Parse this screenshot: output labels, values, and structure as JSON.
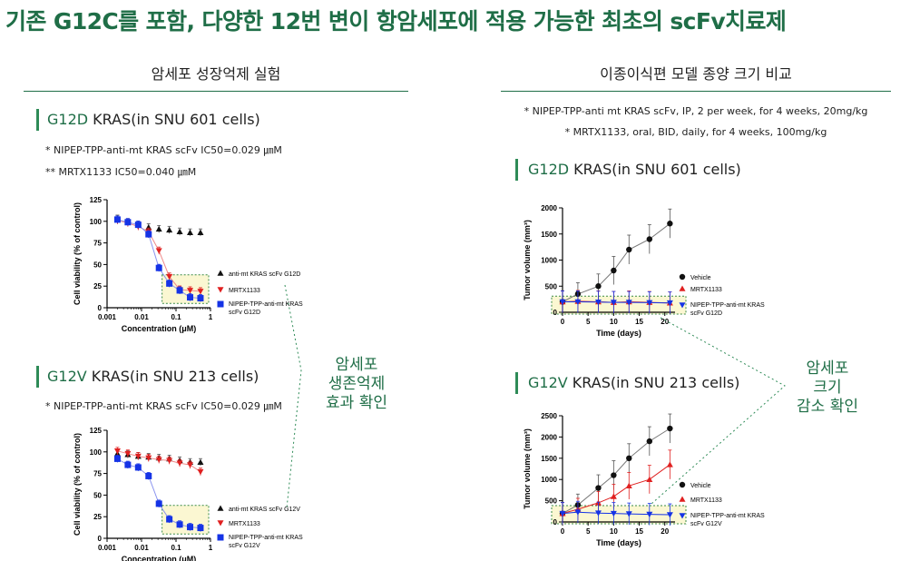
{
  "headline": "기존 G12C를 포함, 다양한 12번 변이 항암세포에 적용 가능한 최초의 scFv치료제",
  "left_section": {
    "title": "암세포 성장억제 실험",
    "panel1": {
      "mutation": "G12D",
      "rest": " KRAS(in SNU 601 cells)"
    },
    "panel1_notes": [
      "* NIPEP-TPP-anti-mt KRAS scFv IC50=0.029 ㎛M",
      "** MRTX1133 IC50=0.040 ㎛M"
    ],
    "panel2": {
      "mutation": "G12V",
      "rest": " KRAS(in SNU 213 cells)"
    },
    "panel2_notes": [
      "* NIPEP-TPP-anti-mt KRAS scFv IC50=0.029 ㎛M"
    ],
    "callout": [
      "암세포",
      "생존억제",
      "효과 확인"
    ]
  },
  "right_section": {
    "title": "이종이식편 모델 종양 크기 비교",
    "notes": [
      "* NIPEP-TPP-anti mt KRAS scFv, IP, 2 per week, for 4 weeks, 20mg/kg",
      "* MRTX1133, oral, BID, daily, for 4 weeks, 100mg/kg"
    ],
    "panel1": {
      "mutation": "G12D",
      "rest": " KRAS(in SNU 601 cells)"
    },
    "panel2": {
      "mutation": "G12V",
      "rest": " KRAS(in SNU 213 cells)"
    },
    "callout": [
      "암세포",
      "크기",
      "감소 확인"
    ]
  },
  "chart_data": [
    {
      "type": "scatter",
      "id": "viability_g12d",
      "xlabel": "Concentration (μM)",
      "ylabel": "Cell viability (% of control)",
      "xscale": "log",
      "xlim": [
        0.001,
        1
      ],
      "ylim": [
        0,
        125
      ],
      "xticks": [
        "0.001",
        "0.01",
        "0.1",
        "1"
      ],
      "xtick_labels": [
        "0.001",
        "0.01",
        "0.1",
        "1"
      ],
      "yticks": [
        0,
        25,
        50,
        75,
        100,
        125
      ],
      "legend_position": "right",
      "series": [
        {
          "name": "anti-mt KRAS scFv G12D",
          "color": "#111111",
          "marker": "triangle-up",
          "x": [
            0.002,
            0.004,
            0.008,
            0.016,
            0.032,
            0.064,
            0.128,
            0.256,
            0.512
          ],
          "y": [
            103,
            99,
            96,
            93,
            91,
            90,
            88,
            87,
            87
          ]
        },
        {
          "name": "MRTX1133",
          "color": "#e02020",
          "marker": "triangle-down",
          "x": [
            0.002,
            0.004,
            0.008,
            0.016,
            0.032,
            0.064,
            0.128,
            0.256,
            0.512
          ],
          "y": [
            101,
            98,
            94,
            88,
            66,
            36,
            21,
            20,
            19
          ]
        },
        {
          "name": "NIPEP-TPP-anti-mt KRAS scFv G12D",
          "color": "#1533e6",
          "marker": "square",
          "x": [
            0.002,
            0.004,
            0.008,
            0.016,
            0.032,
            0.064,
            0.128,
            0.256,
            0.512
          ],
          "y": [
            102,
            99,
            96,
            85,
            46,
            28,
            20,
            12,
            11
          ]
        }
      ]
    },
    {
      "type": "scatter",
      "id": "viability_g12v",
      "xlabel": "Concentration (μM)",
      "ylabel": "Cell viability (% of control)",
      "xscale": "log",
      "xlim": [
        0.001,
        1
      ],
      "ylim": [
        0,
        125
      ],
      "xticks": [
        "0.001",
        "0.01",
        "0.1",
        "1"
      ],
      "xtick_labels": [
        "0.001",
        "0.01",
        "0.1",
        "1"
      ],
      "yticks": [
        0,
        25,
        50,
        75,
        100,
        125
      ],
      "legend_position": "right",
      "series": [
        {
          "name": "anti-mt KRAS scFv G12V",
          "color": "#111111",
          "marker": "triangle-up",
          "x": [
            0.002,
            0.004,
            0.008,
            0.016,
            0.032,
            0.064,
            0.128,
            0.256,
            0.512
          ],
          "y": [
            98,
            97,
            95,
            94,
            93,
            92,
            90,
            88,
            88
          ]
        },
        {
          "name": "MRTX1133",
          "color": "#e02020",
          "marker": "triangle-down",
          "x": [
            0.002,
            0.004,
            0.008,
            0.016,
            0.032,
            0.064,
            0.128,
            0.256,
            0.512
          ],
          "y": [
            101,
            98,
            95,
            93,
            91,
            90,
            87,
            85,
            77
          ]
        },
        {
          "name": "NIPEP-TPP-anti-mt KRAS scFv G12V",
          "color": "#1533e6",
          "marker": "square",
          "x": [
            0.002,
            0.004,
            0.008,
            0.016,
            0.032,
            0.064,
            0.128,
            0.256,
            0.512
          ],
          "y": [
            92,
            85,
            82,
            72,
            40,
            22,
            16,
            13,
            12
          ]
        }
      ]
    },
    {
      "type": "line",
      "id": "tumor_g12d",
      "xlabel": "Time (days)",
      "ylabel": "Tumor volume (mm³)",
      "xlim": [
        0,
        22
      ],
      "ylim": [
        0,
        2000
      ],
      "xticks": [
        0,
        5,
        10,
        15,
        20
      ],
      "yticks": [
        0,
        500,
        1000,
        1500,
        2000
      ],
      "legend_position": "right",
      "series": [
        {
          "name": "Vehicle",
          "color": "#111111",
          "marker": "circle",
          "x": [
            0,
            3,
            7,
            10,
            13,
            17,
            21
          ],
          "y": [
            200,
            350,
            500,
            800,
            1200,
            1400,
            1700
          ]
        },
        {
          "name": "MRTX1133",
          "color": "#e02020",
          "marker": "triangle-up",
          "x": [
            0,
            3,
            7,
            10,
            13,
            17,
            21
          ],
          "y": [
            200,
            210,
            200,
            190,
            200,
            190,
            180
          ]
        },
        {
          "name": "NIPEP-TPP-anti-mt KRAS scFv G12D",
          "color": "#1533e6",
          "marker": "triangle-down",
          "x": [
            0,
            3,
            7,
            10,
            13,
            17,
            21
          ],
          "y": [
            200,
            200,
            195,
            190,
            190,
            185,
            180
          ]
        }
      ]
    },
    {
      "type": "line",
      "id": "tumor_g12v",
      "xlabel": "Time (days)",
      "ylabel": "Tumor volume (mm³)",
      "xlim": [
        0,
        22
      ],
      "ylim": [
        0,
        2500
      ],
      "xticks": [
        0,
        5,
        10,
        15,
        20
      ],
      "yticks": [
        0,
        500,
        1000,
        1500,
        2000,
        2500
      ],
      "legend_position": "right",
      "series": [
        {
          "name": "Vehicle",
          "color": "#111111",
          "marker": "circle",
          "x": [
            0,
            3,
            7,
            10,
            13,
            17,
            21
          ],
          "y": [
            200,
            400,
            800,
            1100,
            1500,
            1900,
            2200
          ]
        },
        {
          "name": "MRTX1133",
          "color": "#e02020",
          "marker": "triangle-up",
          "x": [
            0,
            3,
            7,
            10,
            13,
            17,
            21
          ],
          "y": [
            200,
            300,
            450,
            600,
            850,
            1000,
            1350
          ]
        },
        {
          "name": "NIPEP-TPP-anti-mt KRAS scFv G12V",
          "color": "#1533e6",
          "marker": "triangle-down",
          "x": [
            0,
            3,
            7,
            10,
            13,
            17,
            21
          ],
          "y": [
            200,
            230,
            210,
            200,
            190,
            180,
            170
          ]
        }
      ]
    }
  ]
}
